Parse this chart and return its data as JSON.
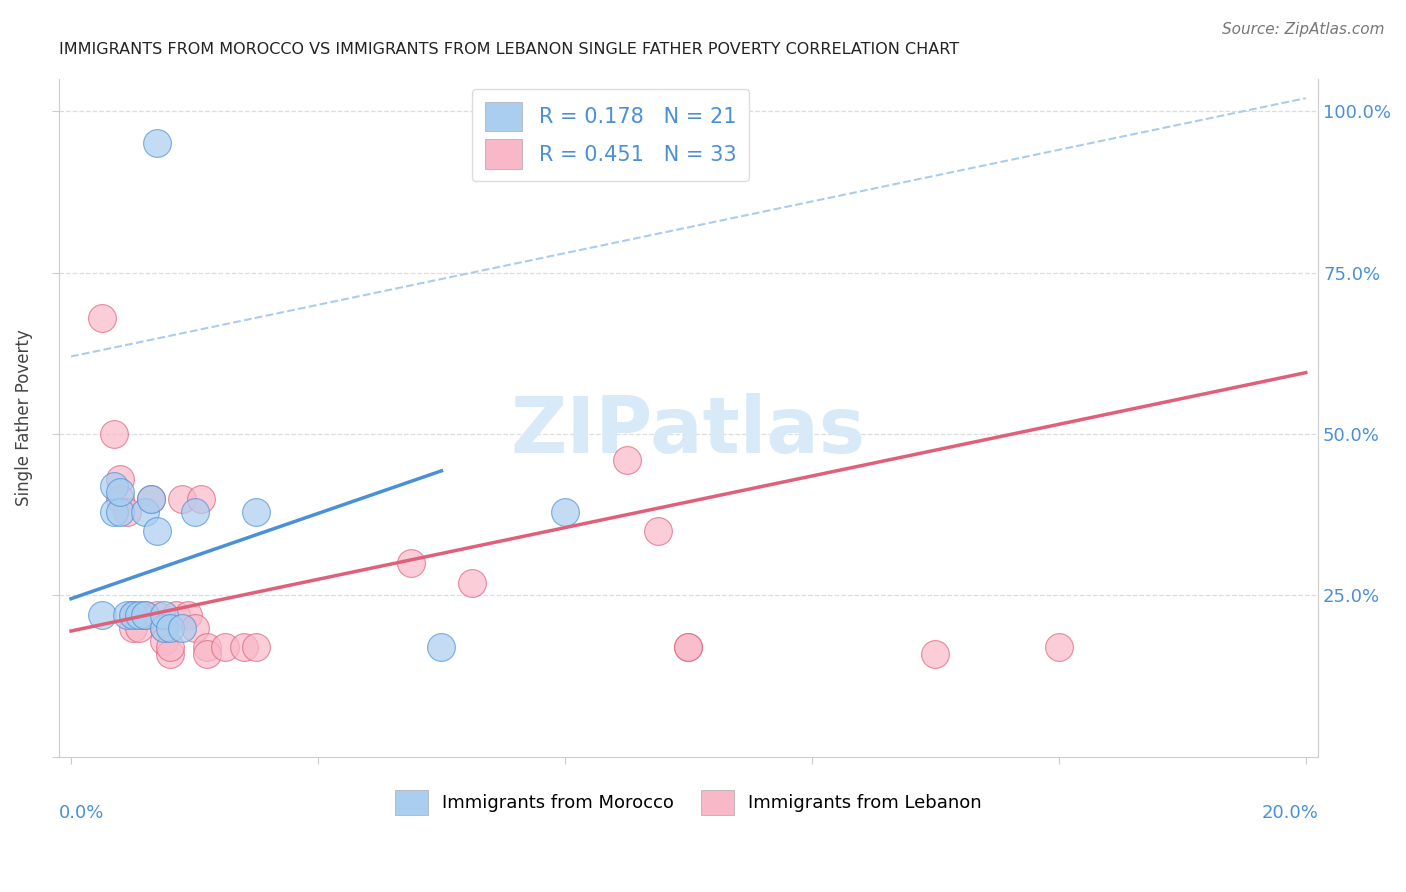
{
  "title": "IMMIGRANTS FROM MOROCCO VS IMMIGRANTS FROM LEBANON SINGLE FATHER POVERTY CORRELATION CHART",
  "source": "Source: ZipAtlas.com",
  "ylabel": "Single Father Poverty",
  "xlim": [
    0,
    0.2
  ],
  "ylim": [
    0,
    1.05
  ],
  "morocco_R": 0.178,
  "morocco_N": 21,
  "lebanon_R": 0.451,
  "lebanon_N": 33,
  "morocco_color": "#aacef0",
  "lebanon_color": "#f8b8c8",
  "morocco_line_color": "#4a90d9",
  "lebanon_line_color": "#e0607a",
  "ref_line_color": "#aaccee",
  "watermark_color": "#d8eaf8",
  "morocco_points_x": [
    0.014,
    0.005,
    0.007,
    0.007,
    0.008,
    0.008,
    0.009,
    0.01,
    0.011,
    0.012,
    0.012,
    0.013,
    0.014,
    0.015,
    0.015,
    0.016,
    0.018,
    0.02,
    0.03,
    0.06,
    0.08
  ],
  "morocco_points_y": [
    0.95,
    0.22,
    0.38,
    0.42,
    0.38,
    0.41,
    0.22,
    0.22,
    0.22,
    0.22,
    0.38,
    0.4,
    0.35,
    0.2,
    0.22,
    0.2,
    0.2,
    0.38,
    0.38,
    0.17,
    0.38
  ],
  "lebanon_points_x": [
    0.005,
    0.007,
    0.008,
    0.008,
    0.009,
    0.01,
    0.01,
    0.011,
    0.012,
    0.013,
    0.014,
    0.015,
    0.015,
    0.016,
    0.016,
    0.017,
    0.018,
    0.019,
    0.02,
    0.021,
    0.022,
    0.022,
    0.025,
    0.028,
    0.03,
    0.055,
    0.065,
    0.09,
    0.095,
    0.1,
    0.1,
    0.14,
    0.16
  ],
  "lebanon_points_y": [
    0.68,
    0.5,
    0.43,
    0.4,
    0.38,
    0.22,
    0.2,
    0.2,
    0.22,
    0.4,
    0.22,
    0.2,
    0.18,
    0.16,
    0.17,
    0.22,
    0.4,
    0.22,
    0.2,
    0.4,
    0.17,
    0.16,
    0.17,
    0.17,
    0.17,
    0.3,
    0.27,
    0.46,
    0.35,
    0.17,
    0.17,
    0.16,
    0.17
  ]
}
